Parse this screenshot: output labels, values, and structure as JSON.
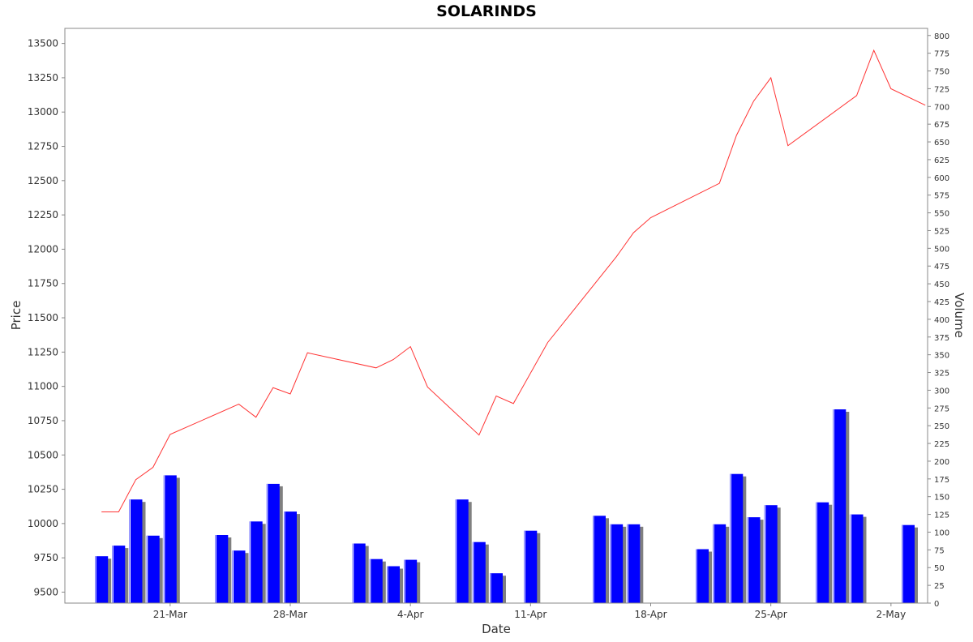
{
  "chart_data": {
    "type": "bar+line",
    "title": "SOLARINDS",
    "xlabel": "Date",
    "ylabel_left": "Price",
    "ylabel_right": "Volume",
    "price_ylim": [
      9420,
      13610
    ],
    "price_ticks": [
      9500,
      9750,
      10000,
      10250,
      10500,
      10750,
      11000,
      11250,
      11500,
      11750,
      12000,
      12250,
      12500,
      12750,
      13000,
      13250,
      13500
    ],
    "volume_ylim": [
      0,
      810
    ],
    "volume_ticks": [
      0,
      25,
      50,
      75,
      100,
      125,
      150,
      175,
      200,
      225,
      250,
      275,
      300,
      325,
      350,
      375,
      400,
      425,
      450,
      475,
      500,
      525,
      550,
      575,
      600,
      625,
      650,
      675,
      700,
      725,
      750,
      775,
      800
    ],
    "date_range": [
      "2022-03-16",
      "2022-05-03"
    ],
    "x_ticks": [
      {
        "label": "21-Mar",
        "date": "2022-03-21"
      },
      {
        "label": "28-Mar",
        "date": "2022-03-28"
      },
      {
        "label": "4-Apr",
        "date": "2022-04-04"
      },
      {
        "label": "11-Apr",
        "date": "2022-04-11"
      },
      {
        "label": "18-Apr",
        "date": "2022-04-18"
      },
      {
        "label": "25-Apr",
        "date": "2022-04-25"
      },
      {
        "label": "2-May",
        "date": "2022-05-02"
      }
    ],
    "colors": {
      "price_line": "#ff3333",
      "volume_bar": "#0000ff",
      "volume_shadow": "#808080"
    },
    "price_series": [
      {
        "date": "2022-03-17",
        "close": 10085
      },
      {
        "date": "2022-03-18",
        "close": 10085
      },
      {
        "date": "2022-03-19",
        "close": 10320
      },
      {
        "date": "2022-03-20",
        "close": 10410
      },
      {
        "date": "2022-03-21",
        "close": 10650
      },
      {
        "date": "2022-03-25",
        "close": 10870
      },
      {
        "date": "2022-03-26",
        "close": 10775
      },
      {
        "date": "2022-03-27",
        "close": 10990
      },
      {
        "date": "2022-03-28",
        "close": 10945
      },
      {
        "date": "2022-03-29",
        "close": 11245
      },
      {
        "date": "2022-04-02",
        "close": 11135
      },
      {
        "date": "2022-04-03",
        "close": 11195
      },
      {
        "date": "2022-04-04",
        "close": 11290
      },
      {
        "date": "2022-04-05",
        "close": 10995
      },
      {
        "date": "2022-04-08",
        "close": 10645
      },
      {
        "date": "2022-04-09",
        "close": 10930
      },
      {
        "date": "2022-04-10",
        "close": 10875
      },
      {
        "date": "2022-04-12",
        "close": 11320
      },
      {
        "date": "2022-04-16",
        "close": 11945
      },
      {
        "date": "2022-04-17",
        "close": 12120
      },
      {
        "date": "2022-04-18",
        "close": 12230
      },
      {
        "date": "2022-04-22",
        "close": 12480
      },
      {
        "date": "2022-04-23",
        "close": 12830
      },
      {
        "date": "2022-04-24",
        "close": 13080
      },
      {
        "date": "2022-04-25",
        "close": 13250
      },
      {
        "date": "2022-04-26",
        "close": 12755
      },
      {
        "date": "2022-04-30",
        "close": 13120
      },
      {
        "date": "2022-05-01",
        "close": 13450
      },
      {
        "date": "2022-05-02",
        "close": 13170
      },
      {
        "date": "2022-05-04",
        "close": 13050
      }
    ],
    "volume_series": [
      {
        "date": "2022-03-17",
        "volume": 66
      },
      {
        "date": "2022-03-18",
        "volume": 81
      },
      {
        "date": "2022-03-19",
        "volume": 146
      },
      {
        "date": "2022-03-20",
        "volume": 95
      },
      {
        "date": "2022-03-21",
        "volume": 180
      },
      {
        "date": "2022-03-24",
        "volume": 96
      },
      {
        "date": "2022-03-25",
        "volume": 74
      },
      {
        "date": "2022-03-26",
        "volume": 115
      },
      {
        "date": "2022-03-27",
        "volume": 168
      },
      {
        "date": "2022-03-28",
        "volume": 129
      },
      {
        "date": "2022-04-01",
        "volume": 84
      },
      {
        "date": "2022-04-02",
        "volume": 62
      },
      {
        "date": "2022-04-03",
        "volume": 52
      },
      {
        "date": "2022-04-04",
        "volume": 61
      },
      {
        "date": "2022-04-07",
        "volume": 146
      },
      {
        "date": "2022-04-08",
        "volume": 86
      },
      {
        "date": "2022-04-09",
        "volume": 42
      },
      {
        "date": "2022-04-11",
        "volume": 102
      },
      {
        "date": "2022-04-15",
        "volume": 123
      },
      {
        "date": "2022-04-16",
        "volume": 111
      },
      {
        "date": "2022-04-17",
        "volume": 111
      },
      {
        "date": "2022-04-21",
        "volume": 76
      },
      {
        "date": "2022-04-22",
        "volume": 111
      },
      {
        "date": "2022-04-23",
        "volume": 182
      },
      {
        "date": "2022-04-24",
        "volume": 121
      },
      {
        "date": "2022-04-25",
        "volume": 138
      },
      {
        "date": "2022-04-28",
        "volume": 142
      },
      {
        "date": "2022-04-29",
        "volume": 273
      },
      {
        "date": "2022-04-30",
        "volume": 125
      },
      {
        "date": "2022-05-03",
        "volume": 110
      }
    ]
  }
}
